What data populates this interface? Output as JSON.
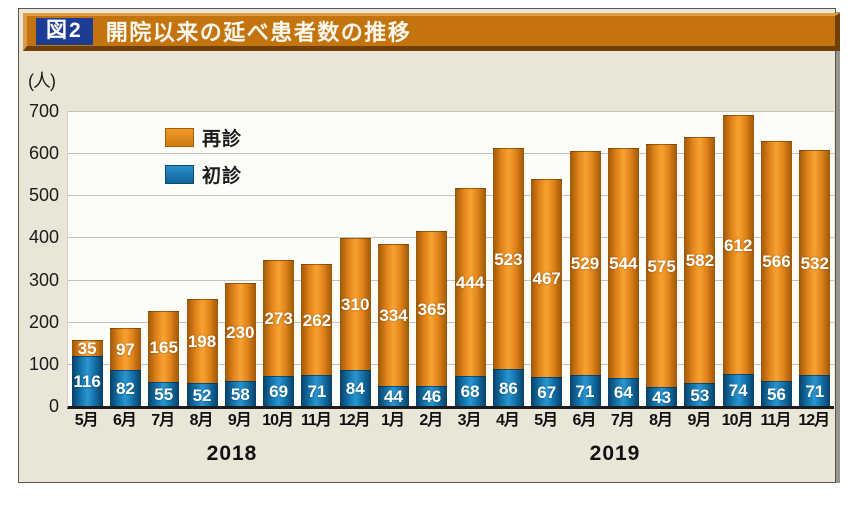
{
  "figure": {
    "tag_label": "図2",
    "title": "開院以来の延べ患者数の推移"
  },
  "chart_data": {
    "type": "bar",
    "stacked": true,
    "title": "開院以来の延べ患者数の推移",
    "unit": "(人)",
    "xlabel": "",
    "ylabel": "人",
    "ylim": [
      0,
      700
    ],
    "yticks": [
      0,
      100,
      200,
      300,
      400,
      500,
      600,
      700
    ],
    "grid": true,
    "legend_position": "inside-top-left",
    "categories": [
      "5月",
      "6月",
      "7月",
      "8月",
      "9月",
      "10月",
      "11月",
      "12月",
      "1月",
      "2月",
      "3月",
      "4月",
      "5月",
      "6月",
      "7月",
      "8月",
      "9月",
      "10月",
      "11月",
      "12月"
    ],
    "year_groups": [
      {
        "label": "2018",
        "months": 8
      },
      {
        "label": "2019",
        "months": 12
      }
    ],
    "series": [
      {
        "name": "再診",
        "role": "top",
        "color": "#e8871b",
        "values": [
          35,
          97,
          165,
          198,
          230,
          273,
          262,
          310,
          334,
          365,
          444,
          523,
          467,
          529,
          544,
          575,
          582,
          612,
          566,
          532
        ]
      },
      {
        "name": "初診",
        "role": "bottom",
        "color": "#1470a8",
        "values": [
          116,
          82,
          55,
          52,
          58,
          69,
          71,
          84,
          44,
          46,
          68,
          86,
          67,
          71,
          64,
          43,
          53,
          74,
          56,
          71
        ]
      }
    ]
  },
  "colors": {
    "title_bar": "#c4740f",
    "title_tag_bg": "#1d3d94",
    "panel_bg": "#e9e6d7",
    "plot_bg": "#fcfcf9",
    "saishin_orange": "#e8871b",
    "shoshin_blue": "#1470a8",
    "grid_line": "#c5c3b7",
    "axis_line": "#1b1b1b"
  }
}
